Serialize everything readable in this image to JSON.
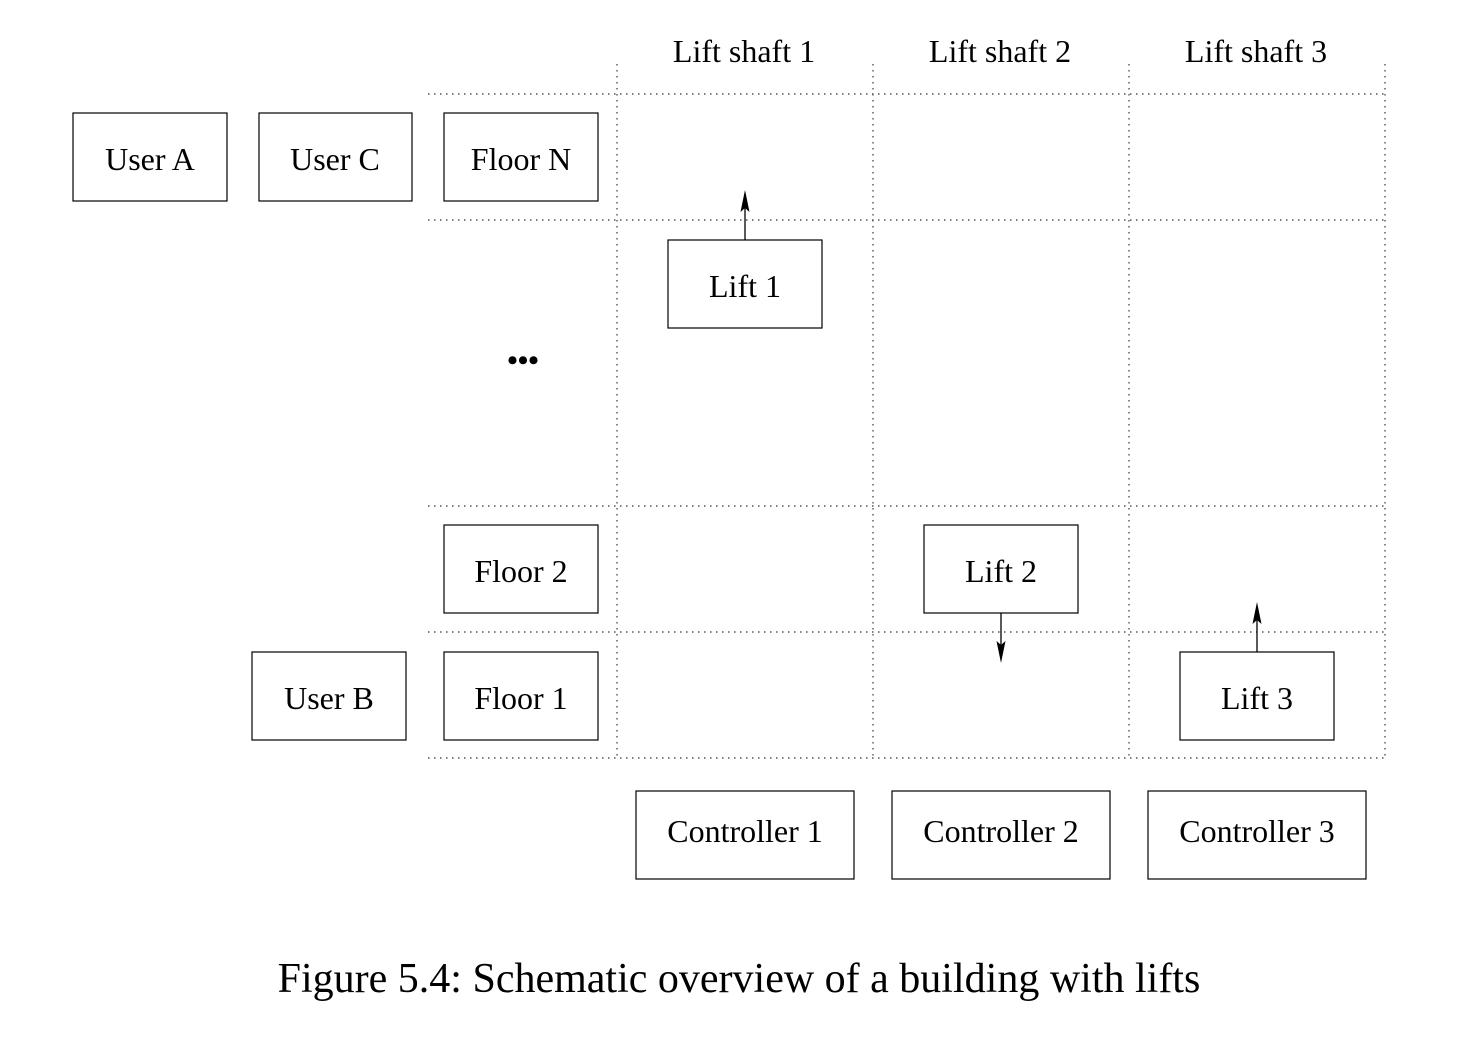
{
  "shafts": [
    "Lift shaft 1",
    "Lift shaft 2",
    "Lift shaft 3"
  ],
  "users": {
    "a": "User A",
    "b": "User B",
    "c": "User C"
  },
  "floors": {
    "top": "Floor N",
    "second": "Floor 2",
    "first": "Floor 1",
    "ellipsis": "•••"
  },
  "lifts": [
    {
      "label": "Lift 1",
      "direction": "up"
    },
    {
      "label": "Lift 2",
      "direction": "down"
    },
    {
      "label": "Lift 3",
      "direction": "up"
    }
  ],
  "controllers": [
    "Controller 1",
    "Controller 2",
    "Controller 3"
  ],
  "caption": "Figure 5.4: Schematic overview of a building with lifts"
}
